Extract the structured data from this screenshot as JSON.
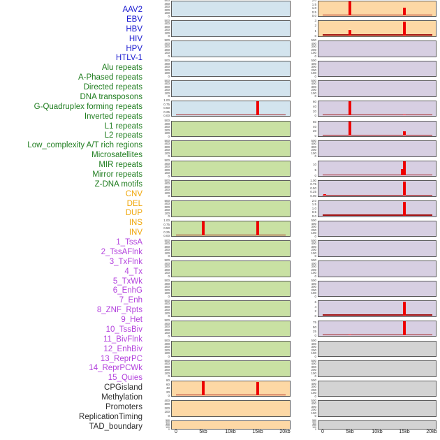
{
  "chart_data": {
    "type": "bar",
    "x_axis": {
      "ticks": [
        "0",
        "5kb",
        "10kb",
        "15kb",
        "20kb"
      ],
      "range_kb": [
        0,
        20
      ]
    },
    "label_group_colors": {
      "virus": "#1a1ad1",
      "repeat": "#1f7d1f",
      "sv": "#f0a70a",
      "chromatin": "#b342dd",
      "other": "#2b2b2b"
    },
    "panel_colors": {
      "blue": "#d3e4ee",
      "green": "#c9e1a3",
      "orange": "#fdd8a5",
      "purple": "#d7cfe2",
      "gray": "#d3d3d3"
    },
    "spike_color": "#ee0000",
    "baseline_color": "#a01010",
    "row_labels": [
      {
        "text": "AAV2",
        "group": "virus"
      },
      {
        "text": "EBV",
        "group": "virus"
      },
      {
        "text": "HBV",
        "group": "virus"
      },
      {
        "text": "HIV",
        "group": "virus"
      },
      {
        "text": "HPV",
        "group": "virus"
      },
      {
        "text": "HTLV-1",
        "group": "virus"
      },
      {
        "text": "Alu repeats",
        "group": "repeat"
      },
      {
        "text": "A-Phased repeats",
        "group": "repeat"
      },
      {
        "text": "Directed repeats",
        "group": "repeat"
      },
      {
        "text": "DNA transposons",
        "group": "repeat"
      },
      {
        "text": "G-Quadruplex forming repeats",
        "group": "repeat"
      },
      {
        "text": "Inverted repeats",
        "group": "repeat"
      },
      {
        "text": "L1 repeats",
        "group": "repeat"
      },
      {
        "text": "L2 repeats",
        "group": "repeat"
      },
      {
        "text": "Low_complexity A/T rich regions",
        "group": "repeat"
      },
      {
        "text": "Microsatellites",
        "group": "repeat"
      },
      {
        "text": "MIR repeats",
        "group": "repeat"
      },
      {
        "text": "Mirror repeats",
        "group": "repeat"
      },
      {
        "text": "Z-DNA motifs",
        "group": "repeat"
      },
      {
        "text": "CNV",
        "group": "sv"
      },
      {
        "text": "DEL",
        "group": "sv"
      },
      {
        "text": "DUP",
        "group": "sv"
      },
      {
        "text": "INS",
        "group": "sv"
      },
      {
        "text": "INV",
        "group": "sv"
      },
      {
        "text": "1_TssA",
        "group": "chromatin"
      },
      {
        "text": "2_TssAFlnk",
        "group": "chromatin"
      },
      {
        "text": "3_TxFlnk",
        "group": "chromatin"
      },
      {
        "text": "4_Tx",
        "group": "chromatin"
      },
      {
        "text": "5_TxWk",
        "group": "chromatin"
      },
      {
        "text": "6_EnhG",
        "group": "chromatin"
      },
      {
        "text": "7_Enh",
        "group": "chromatin"
      },
      {
        "text": "8_ZNF_Rpts",
        "group": "chromatin"
      },
      {
        "text": "9_Het",
        "group": "chromatin"
      },
      {
        "text": "10_TssBiv",
        "group": "chromatin"
      },
      {
        "text": "11_BivFlnk",
        "group": "chromatin"
      },
      {
        "text": "12_EnhBiv",
        "group": "chromatin"
      },
      {
        "text": "13_ReprPC",
        "group": "chromatin"
      },
      {
        "text": "14_ReprPCWk",
        "group": "chromatin"
      },
      {
        "text": "15_Quies",
        "group": "chromatin"
      },
      {
        "text": "CPGisland",
        "group": "other"
      },
      {
        "text": "Methylation",
        "group": "other"
      },
      {
        "text": "Promoters",
        "group": "other"
      },
      {
        "text": "ReplicationTiming",
        "group": "other"
      },
      {
        "text": "TAD_boundary",
        "group": "other"
      }
    ],
    "columns": [
      {
        "name": "left",
        "panels": [
          {
            "label": "AAV2",
            "bg": "blue",
            "yticks": [
              "500",
              "400",
              "300",
              "200",
              "100",
              "0"
            ],
            "spikes": [],
            "baseline": false,
            "pad": 0
          },
          {
            "label": "EBV",
            "bg": "blue",
            "yticks": [
              "500",
              "400",
              "300",
              "200",
              "100",
              "0"
            ],
            "spikes": [],
            "baseline": false,
            "pad": 0
          },
          {
            "label": "HBV",
            "bg": "blue",
            "yticks": [
              "500",
              "400",
              "300",
              "200",
              "100",
              "0"
            ],
            "spikes": [],
            "baseline": false,
            "pad": 0
          },
          {
            "label": "HIV",
            "bg": "blue",
            "yticks": [
              "500",
              "400",
              "300",
              "200",
              "100",
              "0"
            ],
            "spikes": [],
            "baseline": false,
            "pad": 0
          },
          {
            "label": "HPV",
            "bg": "blue",
            "yticks": [
              "500",
              "400",
              "300",
              "200",
              "100",
              "0"
            ],
            "spikes": [],
            "baseline": false,
            "pad": 0
          },
          {
            "label": "HTLV-1",
            "bg": "blue",
            "yticks": [
              "1.00",
              "0.75",
              "0.50",
              "0.25",
              "0.00"
            ],
            "spikes": [
              {
                "x_kb": 15,
                "h": 1.0
              }
            ],
            "baseline": true,
            "pad": 0
          },
          {
            "label": "Alu repeats",
            "bg": "green",
            "yticks": [
              "500",
              "400",
              "300",
              "200",
              "100",
              "0"
            ],
            "spikes": [],
            "baseline": false,
            "pad": 0
          },
          {
            "label": "A-Phased repeats",
            "bg": "green",
            "yticks": [
              "500",
              "400",
              "300",
              "200",
              "100",
              "0"
            ],
            "spikes": [],
            "baseline": false,
            "pad": 0
          },
          {
            "label": "Directed repeats",
            "bg": "green",
            "yticks": [
              "500",
              "400",
              "300",
              "200",
              "100",
              "0"
            ],
            "spikes": [],
            "baseline": false,
            "pad": 0
          },
          {
            "label": "DNA transposons",
            "bg": "green",
            "yticks": [
              "500",
              "400",
              "300",
              "200",
              "100",
              "0"
            ],
            "spikes": [],
            "baseline": false,
            "pad": 0
          },
          {
            "label": "G-Quadruplex forming repeats",
            "bg": "green",
            "yticks": [
              "500",
              "400",
              "300",
              "200",
              "100",
              "0"
            ],
            "spikes": [],
            "baseline": false,
            "pad": 0
          },
          {
            "label": "Inverted repeats",
            "bg": "green",
            "yticks": [
              "1.00",
              "0.75",
              "0.50",
              "0.25",
              "0.00"
            ],
            "spikes": [
              {
                "x_kb": 5,
                "h": 1.0
              },
              {
                "x_kb": 15,
                "h": 1.0
              }
            ],
            "baseline": true,
            "pad": 0
          },
          {
            "label": "L1 repeats",
            "bg": "green",
            "yticks": [
              "500",
              "400",
              "300",
              "200",
              "100",
              "0"
            ],
            "spikes": [],
            "baseline": false,
            "pad": 0
          },
          {
            "label": "L2 repeats",
            "bg": "green",
            "yticks": [
              "500",
              "400",
              "300",
              "200",
              "100",
              "0"
            ],
            "spikes": [],
            "baseline": false,
            "pad": 0
          },
          {
            "label": "Low_complexity A/T rich regions",
            "bg": "green",
            "yticks": [
              "500",
              "400",
              "300",
              "200",
              "100",
              "0"
            ],
            "spikes": [],
            "baseline": false,
            "pad": 0
          },
          {
            "label": "Microsatellites",
            "bg": "green",
            "yticks": [
              "500",
              "400",
              "300",
              "200",
              "100",
              "0"
            ],
            "spikes": [],
            "baseline": false,
            "pad": 0
          },
          {
            "label": "MIR repeats",
            "bg": "green",
            "yticks": [
              "500",
              "400",
              "300",
              "200",
              "100",
              "0"
            ],
            "spikes": [],
            "baseline": false,
            "pad": 0
          },
          {
            "label": "Mirror repeats",
            "bg": "green",
            "yticks": [
              "500",
              "400",
              "300",
              "200",
              "100",
              "0"
            ],
            "spikes": [],
            "baseline": false,
            "pad": 0
          },
          {
            "label": "Z-DNA motifs",
            "bg": "green",
            "yticks": [
              "500",
              "400",
              "300",
              "200",
              "100",
              "0"
            ],
            "spikes": [],
            "baseline": false,
            "pad": 0
          },
          {
            "label": "CNV",
            "bg": "orange",
            "yticks": [
              "80",
              "60",
              "40",
              "20",
              "0"
            ],
            "spikes": [
              {
                "x_kb": 5,
                "h": 1.0
              },
              {
                "x_kb": 15,
                "h": 0.94
              }
            ],
            "baseline": true,
            "pad": 0
          },
          {
            "label": "DEL",
            "bg": "orange",
            "yticks": [
              "400",
              "300",
              "200",
              "100",
              "0"
            ],
            "spikes": [],
            "baseline": false,
            "pad": 0
          },
          {
            "label": "DUP",
            "bg": "orange",
            "yticks": [
              "500",
              "400",
              "300",
              "200",
              "100",
              "0"
            ],
            "spikes": [],
            "baseline": false,
            "pad": 0
          }
        ]
      },
      {
        "name": "right",
        "panels": [
          {
            "label": "INS",
            "bg": "orange",
            "yticks": [
              "2.0",
              "1.5",
              "1.0",
              "0.5",
              "0.0"
            ],
            "spikes": [
              {
                "x_kb": 5,
                "h": 1.0
              },
              {
                "x_kb": 15,
                "h": 0.55
              }
            ],
            "baseline": true,
            "pad": 0
          },
          {
            "label": "INV",
            "bg": "orange",
            "yticks": [
              "3",
              "2",
              "1",
              "0"
            ],
            "spikes": [
              {
                "x_kb": 5,
                "h": 0.38
              },
              {
                "x_kb": 15,
                "h": 1.0
              }
            ],
            "baseline": true,
            "pad": 0
          },
          {
            "label": "1_TssA",
            "bg": "purple",
            "yticks": [
              "500",
              "400",
              "300",
              "200",
              "100",
              "0"
            ],
            "spikes": [],
            "baseline": false,
            "pad": 0
          },
          {
            "label": "2_TssAFlnk",
            "bg": "purple",
            "yticks": [
              "500",
              "400",
              "300",
              "200",
              "100",
              "0"
            ],
            "spikes": [],
            "baseline": false,
            "pad": 0
          },
          {
            "label": "3_TxFlnk",
            "bg": "purple",
            "yticks": [
              "500",
              "400",
              "300",
              "200",
              "100",
              "0"
            ],
            "spikes": [],
            "baseline": false,
            "pad": 0
          },
          {
            "label": "4_Tx",
            "bg": "purple",
            "yticks": [
              "60",
              "40",
              "20",
              "0"
            ],
            "spikes": [
              {
                "x_kb": 5,
                "h": 1.0
              },
              {
                "x_kb": 15,
                "h": 0.06
              }
            ],
            "baseline": true,
            "pad": 0.08
          },
          {
            "label": "5_TxWk",
            "bg": "purple",
            "yticks": [
              "60",
              "40",
              "20",
              "0"
            ],
            "spikes": [
              {
                "x_kb": 5,
                "h": 1.0
              },
              {
                "x_kb": 15,
                "h": 0.32
              }
            ],
            "baseline": true,
            "pad": 0.08
          },
          {
            "label": "6_EnhG",
            "bg": "purple",
            "yticks": [
              "500",
              "400",
              "300",
              "200",
              "100",
              "0"
            ],
            "spikes": [],
            "baseline": false,
            "pad": 0
          },
          {
            "label": "7_Enh",
            "bg": "purple",
            "yticks": [
              "10",
              "5",
              "0"
            ],
            "spikes": [
              {
                "x_kb": 14.6,
                "h": 0.45
              },
              {
                "x_kb": 15,
                "h": 1.0
              }
            ],
            "baseline": true,
            "pad": 0.25
          },
          {
            "label": "8_ZNF_Rpts",
            "bg": "purple",
            "yticks": [
              "1.00",
              "0.75",
              "0.50",
              "0.25",
              "0.00"
            ],
            "spikes": [
              {
                "x_kb": 0.5,
                "h": 0.08
              },
              {
                "x_kb": 15,
                "h": 1.0
              }
            ],
            "baseline": true,
            "pad": 0
          },
          {
            "label": "9_Het",
            "bg": "purple",
            "yticks": [
              "2.0",
              "1.5",
              "1.0",
              "0.5",
              "0.0"
            ],
            "spikes": [
              {
                "x_kb": 15,
                "h": 1.0
              }
            ],
            "baseline": true,
            "pad": 0
          },
          {
            "label": "10_TssBiv",
            "bg": "purple",
            "yticks": [
              "500",
              "400",
              "300",
              "200",
              "100",
              "0"
            ],
            "spikes": [],
            "baseline": false,
            "pad": 0
          },
          {
            "label": "11_BivFlnk",
            "bg": "purple",
            "yticks": [
              "500",
              "400",
              "300",
              "200",
              "100",
              "0"
            ],
            "spikes": [],
            "baseline": false,
            "pad": 0
          },
          {
            "label": "12_EnhBiv",
            "bg": "purple",
            "yticks": [
              "500",
              "400",
              "300",
              "200",
              "100",
              "0"
            ],
            "spikes": [],
            "baseline": false,
            "pad": 0
          },
          {
            "label": "13_ReprPC",
            "bg": "purple",
            "yticks": [
              "500",
              "400",
              "300",
              "200",
              "100",
              "0"
            ],
            "spikes": [],
            "baseline": false,
            "pad": 0
          },
          {
            "label": "14_ReprPCWk",
            "bg": "purple",
            "yticks": [
              "6",
              "4",
              "2",
              "0"
            ],
            "spikes": [
              {
                "x_kb": 15,
                "h": 1.0
              }
            ],
            "baseline": true,
            "pad": 0.1
          },
          {
            "label": "15_Quies",
            "bg": "purple",
            "yticks": [
              "75",
              "50",
              "25",
              "0"
            ],
            "spikes": [
              {
                "x_kb": 5,
                "h": 0.07
              },
              {
                "x_kb": 15,
                "h": 1.0
              }
            ],
            "baseline": true,
            "pad": 0.12
          },
          {
            "label": "CPGisland",
            "bg": "gray",
            "yticks": [
              "500",
              "400",
              "300",
              "200",
              "100",
              "0"
            ],
            "spikes": [],
            "baseline": false,
            "pad": 0
          },
          {
            "label": "Methylation",
            "bg": "gray",
            "yticks": [
              "500",
              "400",
              "300",
              "200",
              "100",
              "0"
            ],
            "spikes": [],
            "baseline": false,
            "pad": 0
          },
          {
            "label": "Promoters",
            "bg": "gray",
            "yticks": [
              "500",
              "400",
              "300",
              "200",
              "100",
              "0"
            ],
            "spikes": [],
            "baseline": false,
            "pad": 0
          },
          {
            "label": "ReplicationTiming",
            "bg": "gray",
            "yticks": [
              "500",
              "400",
              "300",
              "200",
              "100",
              "0"
            ],
            "spikes": [],
            "baseline": false,
            "pad": 0
          },
          {
            "label": "TAD_boundary",
            "bg": "gray",
            "yticks": [
              "500",
              "400",
              "300",
              "200",
              "100",
              "0"
            ],
            "spikes": [],
            "baseline": false,
            "pad": 0
          }
        ]
      }
    ]
  }
}
